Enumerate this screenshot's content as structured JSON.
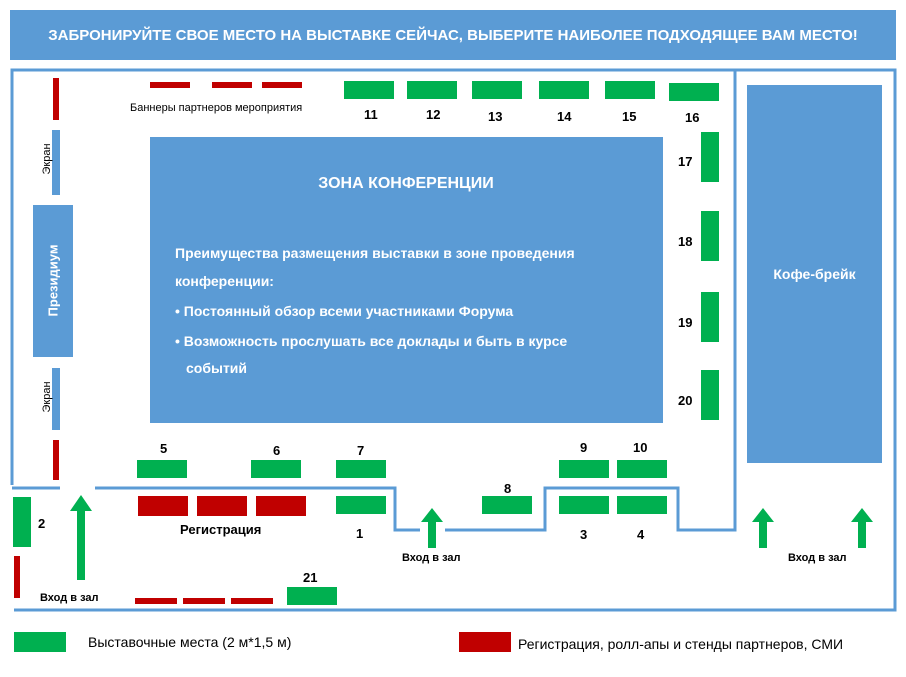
{
  "header": {
    "title": "ЗАБРОНИРУЙТЕ СВОЕ МЕСТО НА ВЫСТАВКЕ СЕЙЧАС, ВЫБЕРИТЕ НАИБОЛЕЕ ПОДХОДЯЩЕЕ ВАМ МЕСТО!"
  },
  "labels": {
    "partner_banners": "Баннеры партнеров мероприятия",
    "screen_top": "Экран",
    "screen_bottom": "Экран",
    "presidium": "Президиум",
    "registration": "Регистрация",
    "entrance_left": "Вход в зал",
    "entrance_middle": "Вход в зал",
    "entrance_right": "Вход в зал",
    "coffee_break": "Кофе-брейк"
  },
  "conference_zone": {
    "title": "ЗОНА КОНФЕРЕНЦИИ",
    "advantages_heading_1": "Преимущества размещения выставки в зоне проведения",
    "advantages_heading_2": "конференции:",
    "advantage_1": "Постоянный обзор всеми участниками Форума",
    "advantage_2_line1": "Возможность прослушать все доклады и быть в курсе",
    "advantage_2_line2": "событий",
    "bullet": "•"
  },
  "stands": {
    "s1": "1",
    "s2": "2",
    "s3": "3",
    "s4": "4",
    "s5": "5",
    "s6": "6",
    "s7": "7",
    "s8": "8",
    "s9": "9",
    "s10": "10",
    "s11": "11",
    "s12": "12",
    "s13": "13",
    "s14": "14",
    "s15": "15",
    "s16": "16",
    "s17": "17",
    "s18": "18",
    "s19": "19",
    "s20": "20",
    "s21": "21"
  },
  "legend": {
    "exhibition": "Выставочные места (2 м*1,5 м)",
    "registration": "Регистрация, ролл-апы и стенды партнеров, СМИ"
  },
  "colors": {
    "exhibition": "#00b050",
    "partner": "#c00000",
    "zone": "#5b9bd5"
  }
}
